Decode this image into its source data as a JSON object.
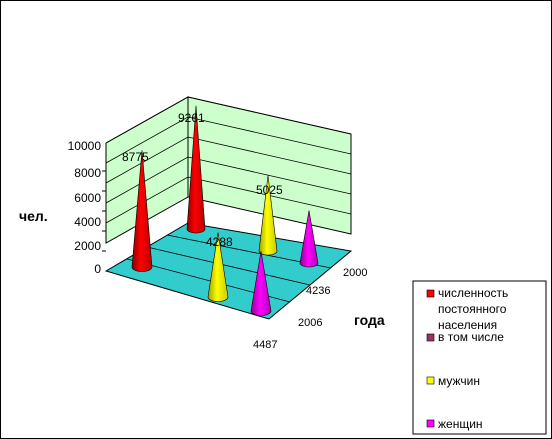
{
  "chart_data": {
    "type": "bar",
    "subtype": "3d-cone",
    "ylabel": "чел.",
    "depth_label": "года",
    "y_ticks": [
      "0",
      "2000",
      "4000",
      "6000",
      "8000",
      "10000"
    ],
    "ylim": [
      0,
      10000
    ],
    "depth_tick_labels": [
      "2000",
      "4236",
      "2006",
      "4487"
    ],
    "series": [
      {
        "name": "численность постоянного населения",
        "color": "#ff0000",
        "values": [
          8775,
          9261
        ],
        "labels": [
          "8775",
          "9261"
        ]
      },
      {
        "name": "в том числе",
        "color": "#993366",
        "values": []
      },
      {
        "name": "мужчин",
        "color": "#ffff00",
        "values": [
          4288,
          5025
        ],
        "labels": [
          "4288",
          "5025"
        ]
      },
      {
        "name": "женщин",
        "color": "#ff00ff",
        "values": [
          4487,
          4236
        ],
        "labels": []
      }
    ],
    "grid": true,
    "legend_position": "right",
    "colors": {
      "walls": "#ccffcc",
      "floor": "#33cccc",
      "grid": "#000000"
    }
  }
}
